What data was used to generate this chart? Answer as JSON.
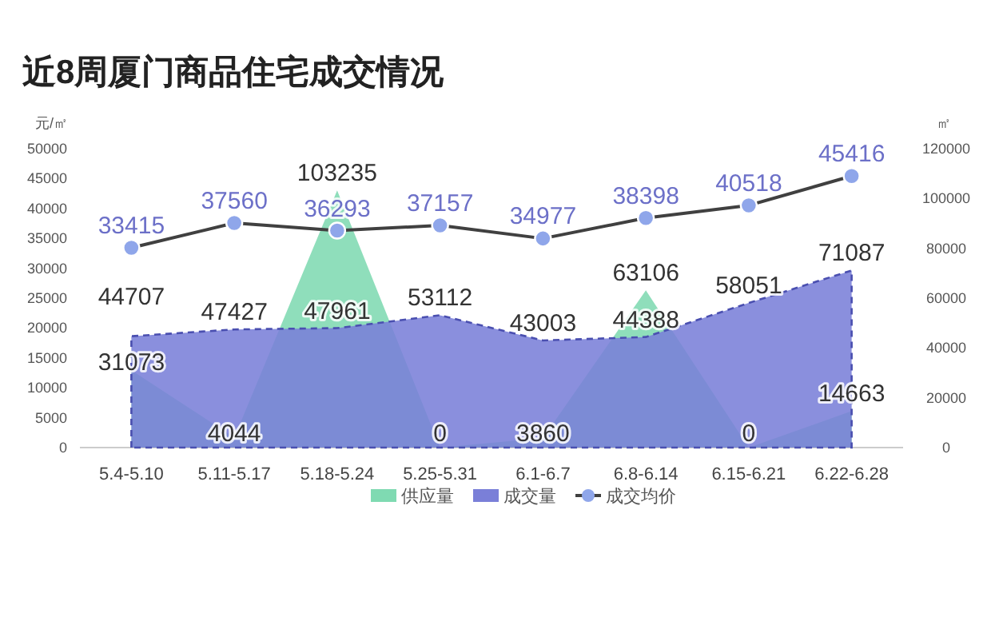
{
  "chart_data": {
    "type": "area",
    "title": "近8周厦门商品住宅成交情况",
    "ylabel": "元/㎡",
    "y2label": "㎡",
    "categories": [
      "5.4-5.10",
      "5.11-5.17",
      "5.18-5.24",
      "5.25-5.31",
      "6.1-6.7",
      "6.8-6.14",
      "6.15-6.21",
      "6.22-6.28"
    ],
    "series": [
      {
        "name": "供应量",
        "type": "area",
        "axis": "y2",
        "color": "#7fdab2",
        "values": [
          31073,
          4044,
          103235,
          0,
          3860,
          63106,
          0,
          14663
        ]
      },
      {
        "name": "成交量",
        "type": "area",
        "axis": "y2",
        "color": "#7a7fd8",
        "line_style": "dashed",
        "values": [
          44707,
          47427,
          47961,
          53112,
          43003,
          44388,
          58051,
          71087
        ]
      },
      {
        "name": "成交均价",
        "type": "line",
        "color": "#404040",
        "marker": "circle",
        "values": [
          33415,
          37560,
          36293,
          37157,
          34977,
          38398,
          40518,
          45416
        ]
      }
    ],
    "ylim": [
      0,
      50000
    ],
    "yticks": [
      0,
      5000,
      10000,
      15000,
      20000,
      25000,
      30000,
      35000,
      40000,
      45000,
      50000
    ],
    "y2lim": [
      0,
      120000
    ],
    "y2ticks": [
      0,
      20000,
      40000,
      60000,
      80000,
      100000,
      120000
    ],
    "data_labels": true,
    "grid": false,
    "legend": "bottom"
  }
}
